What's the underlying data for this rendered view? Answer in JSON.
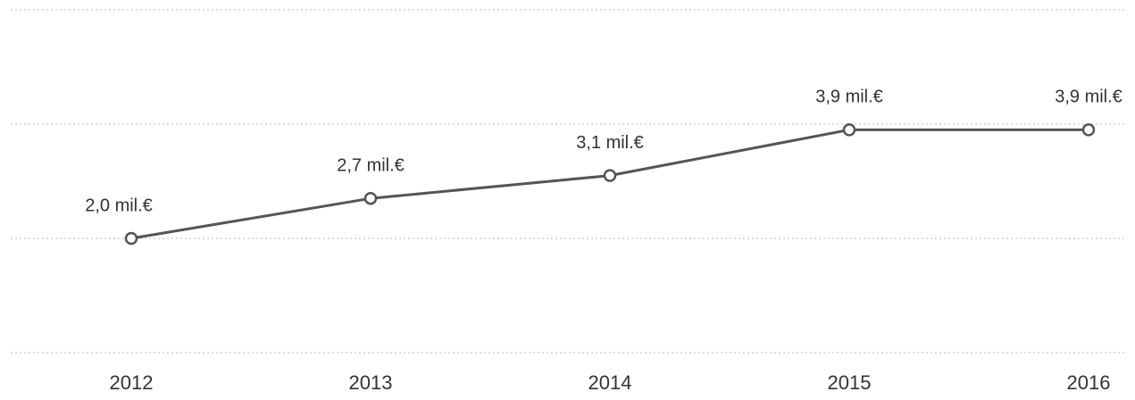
{
  "chart_data": {
    "type": "line",
    "categories": [
      "2012",
      "2013",
      "2014",
      "2015",
      "2016"
    ],
    "series": [
      {
        "color": "#555555",
        "values": [
          2.0,
          2.7,
          3.1,
          3.9,
          3.9
        ],
        "value_labels": [
          "2,0 mil.€",
          "2,7 mil.€",
          "3,1 mil.€",
          "3,9 mil.€",
          "3,9 mil.€"
        ]
      }
    ],
    "ylim": [
      0,
      6
    ],
    "yticks": [
      0,
      2,
      4,
      6
    ],
    "grid": true
  }
}
